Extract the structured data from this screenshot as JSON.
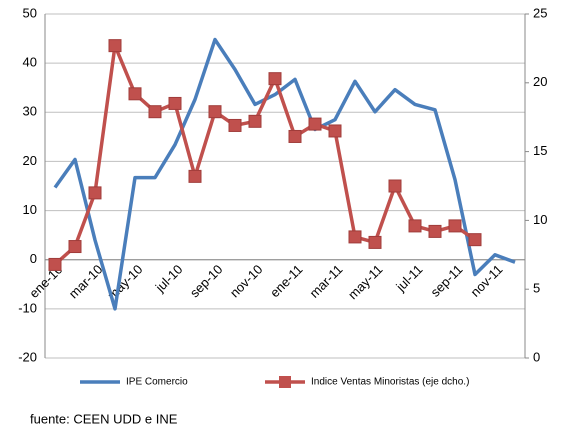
{
  "chart_data": {
    "type": "line",
    "categories": [
      "ene-10",
      null,
      "mar-10",
      null,
      "may-10",
      null,
      "jul-10",
      null,
      "sep-10",
      null,
      "nov-10",
      null,
      "ene-11",
      null,
      "mar-11",
      null,
      "may-11",
      null,
      "jul-11",
      null,
      "sep-11",
      null,
      "nov-11",
      null
    ],
    "series": [
      {
        "name": "IPE Comercio",
        "color": "#4a7ebb",
        "axis": "y",
        "values": [
          14.7,
          20.4,
          4,
          -10,
          16.7,
          16.7,
          23.4,
          32.6,
          44.8,
          38.7,
          31.6,
          33.6,
          36.7,
          26.5,
          28.5,
          36.3,
          30.1,
          34.6,
          31.6,
          30.5,
          16.3,
          -3,
          1,
          -0.5
        ]
      },
      {
        "name": "Indice Ventas Minoristas (eje dcho.)",
        "color": "#c0504d",
        "axis": "y2",
        "values": [
          6.8,
          8.1,
          12.0,
          22.7,
          19.2,
          17.9,
          18.5,
          13.2,
          17.9,
          16.9,
          17.2,
          20.3,
          16.1,
          17.0,
          16.5,
          8.8,
          8.4,
          12.5,
          9.6,
          9.2,
          9.6,
          8.6,
          null,
          null
        ]
      }
    ],
    "ylim": [
      -20,
      50
    ],
    "yticks": [
      -20,
      -10,
      0,
      10,
      20,
      30,
      40,
      50
    ],
    "y2lim": [
      0,
      25
    ],
    "y2ticks": [
      0,
      5,
      10,
      15,
      20,
      25
    ],
    "grid": true,
    "source": "fuente: CEEN UDD e INE"
  }
}
